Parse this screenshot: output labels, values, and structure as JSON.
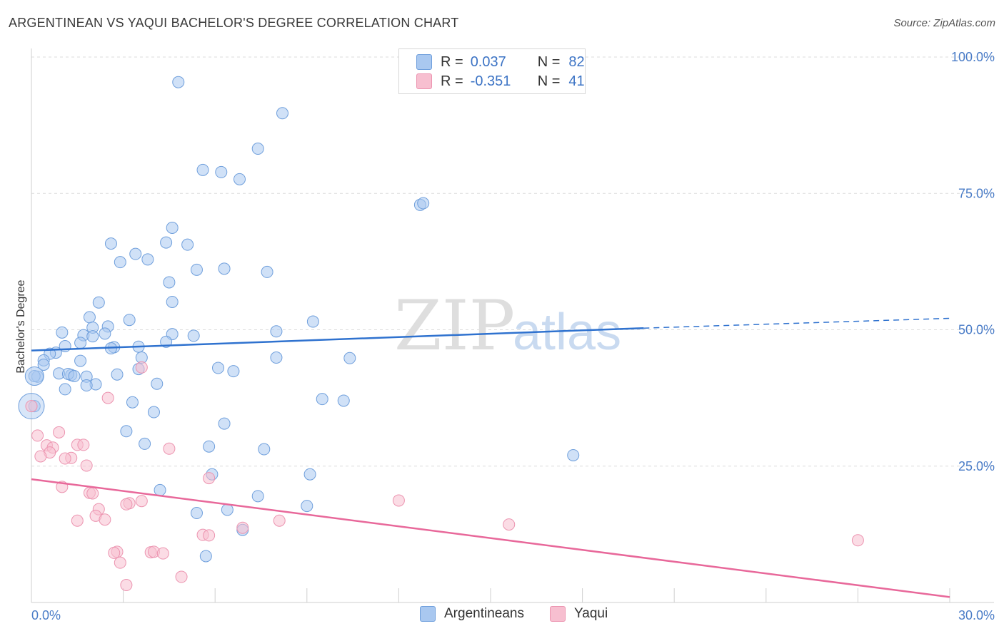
{
  "title": "ARGENTINEAN VS YAQUI BACHELOR'S DEGREE CORRELATION CHART",
  "source": "Source: ZipAtlas.com",
  "watermark": {
    "zip": "ZIP",
    "atlas": "atlas"
  },
  "legend": {
    "rows": [
      {
        "r_label": "R =",
        "r_value": "0.037",
        "n_label": "N =",
        "n_value": "82",
        "color": "#a9c8f0",
        "border": "#6f9fdc"
      },
      {
        "r_label": "R =",
        "r_value": "-0.351",
        "n_label": "N =",
        "n_value": "41",
        "color": "#f7bfd0",
        "border": "#ec94b0"
      }
    ]
  },
  "bottom_legend": {
    "items": [
      "Argentineans",
      "Yaqui"
    ]
  },
  "colors": {
    "blue_fill": "#a9c8f0",
    "blue_stroke": "#6f9fdc",
    "blue_line": "#2f72cf",
    "pink_fill": "#f7bfd0",
    "pink_stroke": "#ec94b0",
    "pink_line": "#e8689a",
    "tick": "#4a7cc7",
    "grid": "#dcdcdc"
  },
  "chart_data": {
    "type": "scatter",
    "title": "ARGENTINEAN VS YAQUI BACHELOR'S DEGREE CORRELATION CHART",
    "xlabel": "",
    "ylabel": "Bachelor's Degree",
    "xlim": [
      0,
      30
    ],
    "ylim": [
      0,
      100
    ],
    "x_tick_labels": [
      "0.0%",
      "30.0%"
    ],
    "y_tick_labels": [
      "25.0%",
      "50.0%",
      "75.0%",
      "100.0%"
    ],
    "y_ticks": [
      25,
      50,
      75,
      100
    ],
    "grid": true,
    "series": [
      {
        "name": "Argentineans",
        "r": 0.037,
        "n": 82,
        "trend": {
          "x0": 0,
          "y0": 46.2,
          "x1": 20,
          "y1": 50.3,
          "dashed_to_x": 30,
          "dashed_to_y": 52.1
        },
        "points": [
          [
            4.8,
            95.4
          ],
          [
            8.2,
            89.7
          ],
          [
            7.4,
            83.2
          ],
          [
            5.6,
            79.3
          ],
          [
            6.2,
            78.9
          ],
          [
            6.8,
            77.6
          ],
          [
            12.7,
            72.9
          ],
          [
            12.8,
            73.2
          ],
          [
            4.6,
            68.7
          ],
          [
            2.6,
            65.8
          ],
          [
            4.4,
            66.0
          ],
          [
            5.1,
            65.6
          ],
          [
            3.4,
            63.9
          ],
          [
            3.8,
            62.9
          ],
          [
            2.9,
            62.4
          ],
          [
            5.4,
            61.0
          ],
          [
            6.3,
            61.2
          ],
          [
            7.7,
            60.6
          ],
          [
            4.5,
            58.7
          ],
          [
            2.2,
            55.0
          ],
          [
            4.6,
            55.1
          ],
          [
            1.9,
            52.3
          ],
          [
            3.2,
            51.8
          ],
          [
            9.2,
            51.5
          ],
          [
            2.0,
            50.4
          ],
          [
            2.5,
            50.6
          ],
          [
            8.0,
            49.7
          ],
          [
            1.0,
            49.5
          ],
          [
            1.7,
            49.0
          ],
          [
            2.4,
            49.3
          ],
          [
            4.6,
            49.2
          ],
          [
            5.3,
            48.9
          ],
          [
            2.0,
            48.8
          ],
          [
            1.6,
            47.6
          ],
          [
            4.4,
            47.8
          ],
          [
            1.1,
            47.0
          ],
          [
            2.7,
            46.8
          ],
          [
            3.5,
            46.9
          ],
          [
            2.6,
            46.6
          ],
          [
            0.8,
            45.8
          ],
          [
            0.6,
            45.6
          ],
          [
            0.4,
            44.4
          ],
          [
            3.6,
            44.9
          ],
          [
            8.0,
            44.9
          ],
          [
            10.4,
            44.8
          ],
          [
            1.6,
            44.3
          ],
          [
            0.4,
            43.6
          ],
          [
            6.1,
            43.0
          ],
          [
            6.6,
            42.4
          ],
          [
            0.9,
            42.0
          ],
          [
            2.8,
            41.8
          ],
          [
            1.3,
            41.7
          ],
          [
            1.2,
            41.9
          ],
          [
            1.4,
            41.5
          ],
          [
            1.8,
            41.4
          ],
          [
            0.2,
            41.4
          ],
          [
            4.1,
            40.1
          ],
          [
            2.1,
            40.0
          ],
          [
            1.8,
            39.8
          ],
          [
            1.1,
            39.1
          ],
          [
            9.5,
            37.3
          ],
          [
            3.3,
            36.7
          ],
          [
            4.0,
            34.9
          ],
          [
            6.3,
            32.8
          ],
          [
            3.1,
            31.4
          ],
          [
            3.7,
            29.1
          ],
          [
            5.8,
            28.6
          ],
          [
            7.6,
            28.1
          ],
          [
            17.7,
            27.0
          ],
          [
            5.9,
            23.5
          ],
          [
            9.1,
            23.5
          ],
          [
            4.2,
            20.6
          ],
          [
            7.4,
            19.5
          ],
          [
            9.0,
            17.7
          ],
          [
            6.4,
            17.0
          ],
          [
            5.4,
            16.4
          ],
          [
            6.9,
            13.3
          ],
          [
            5.7,
            8.5
          ],
          [
            0.1,
            36.0
          ],
          [
            0.1,
            41.5
          ],
          [
            10.2,
            37.0
          ],
          [
            3.5,
            42.8
          ]
        ]
      },
      {
        "name": "Yaqui",
        "r": -0.351,
        "n": 41,
        "trend": {
          "x0": 0,
          "y0": 22.6,
          "x1": 30,
          "y1": 1.0
        },
        "points": [
          [
            0.0,
            36.0
          ],
          [
            3.6,
            43.1
          ],
          [
            2.5,
            37.5
          ],
          [
            0.2,
            30.6
          ],
          [
            0.9,
            31.2
          ],
          [
            0.5,
            28.8
          ],
          [
            0.7,
            28.4
          ],
          [
            1.5,
            28.9
          ],
          [
            1.7,
            28.9
          ],
          [
            4.5,
            28.2
          ],
          [
            0.6,
            27.5
          ],
          [
            1.3,
            26.5
          ],
          [
            0.3,
            26.8
          ],
          [
            1.1,
            26.4
          ],
          [
            1.8,
            25.1
          ],
          [
            5.8,
            22.8
          ],
          [
            1.0,
            21.2
          ],
          [
            1.9,
            20.1
          ],
          [
            2.0,
            20.0
          ],
          [
            12.0,
            18.7
          ],
          [
            3.2,
            18.2
          ],
          [
            3.6,
            18.6
          ],
          [
            3.1,
            18.0
          ],
          [
            2.2,
            17.1
          ],
          [
            2.1,
            15.9
          ],
          [
            2.4,
            15.2
          ],
          [
            1.5,
            15.0
          ],
          [
            8.1,
            15.0
          ],
          [
            6.9,
            13.7
          ],
          [
            15.6,
            14.3
          ],
          [
            5.6,
            12.4
          ],
          [
            5.8,
            12.3
          ],
          [
            27.0,
            11.4
          ],
          [
            2.8,
            9.3
          ],
          [
            2.7,
            9.1
          ],
          [
            3.9,
            9.2
          ],
          [
            4.0,
            9.3
          ],
          [
            4.3,
            9.0
          ],
          [
            2.9,
            7.3
          ],
          [
            4.9,
            4.7
          ],
          [
            3.1,
            3.2
          ]
        ]
      }
    ]
  }
}
